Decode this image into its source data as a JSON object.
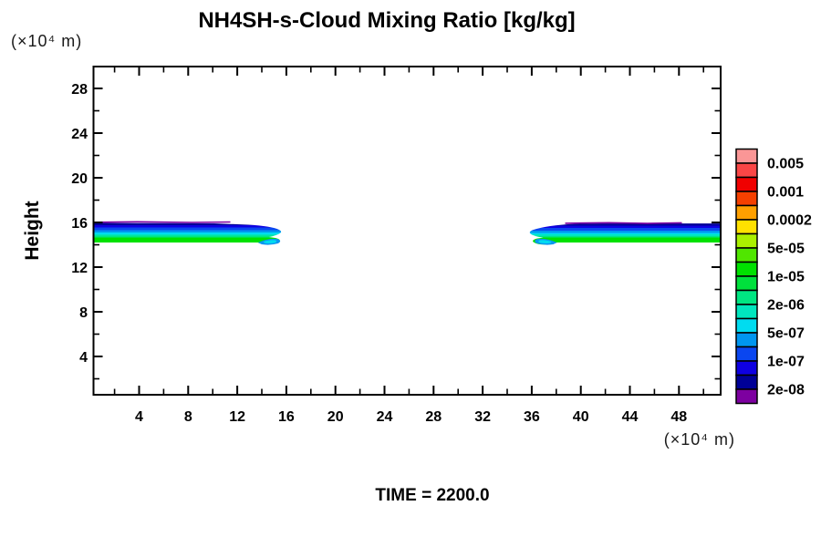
{
  "page": {
    "background": "#ffffff"
  },
  "chart_data": {
    "type": "filled-contour",
    "title": "NH4SH-s-Cloud Mixing Ratio [kg/kg]",
    "time_label": "TIME = 2200.0",
    "x_axis": {
      "unit_label": "(×10⁴  m)",
      "major_ticks": [
        4,
        8,
        12,
        16,
        20,
        24,
        28,
        32,
        36,
        40,
        44,
        48
      ],
      "minor_ticks": [
        2,
        6,
        10,
        14,
        18,
        22,
        26,
        30,
        34,
        38,
        42,
        46,
        50
      ],
      "range": [
        0.3,
        51.4
      ],
      "grid": false
    },
    "y_axis": {
      "label": "Height",
      "unit_label": "(×10⁴  m)",
      "major_ticks": [
        4,
        8,
        12,
        16,
        20,
        24,
        28
      ],
      "minor_ticks": [
        2,
        6,
        10,
        14,
        18,
        22,
        26,
        30
      ],
      "range": [
        0.5,
        30
      ],
      "grid": false
    },
    "colorbar": {
      "position": "right",
      "labels_top_to_bottom": [
        "0.005",
        "0.001",
        "0.0002",
        "5e-05",
        "1e-05",
        "2e-06",
        "5e-07",
        "1e-07",
        "2e-08"
      ],
      "box_colors_top_to_bottom": [
        "#FA9696",
        "#FA4646",
        "#F00000",
        "#F54000",
        "#FFA000",
        "#FFE100",
        "#AAF000",
        "#50E600",
        "#00E100",
        "#00E13C",
        "#00E682",
        "#00E6BE",
        "#00DCF0",
        "#0096F0",
        "#0A46F0",
        "#0F00E1",
        "#000096",
        "#7D00A0"
      ]
    },
    "bands": [
      {
        "name": "left-cloud-band",
        "nose_side": "right",
        "x_from": 0.3,
        "x_to": 15.7,
        "top_height": 16.0,
        "bottom_height": 14.2
      },
      {
        "name": "right-cloud-band",
        "nose_side": "left",
        "x_from": 35.6,
        "x_to": 51.4,
        "top_height": 15.95,
        "bottom_height": 14.2
      }
    ],
    "band_layer_colors_top_to_bottom": [
      "#000096",
      "#0F00E1",
      "#0A46F0",
      "#0096F0",
      "#00DCF0",
      "#00E6BE",
      "#00E682",
      "#00E100"
    ],
    "band_top_edge_color": "#7D00A0",
    "band_hook_colors": [
      "#0A96F0",
      "#00DCF0"
    ]
  }
}
